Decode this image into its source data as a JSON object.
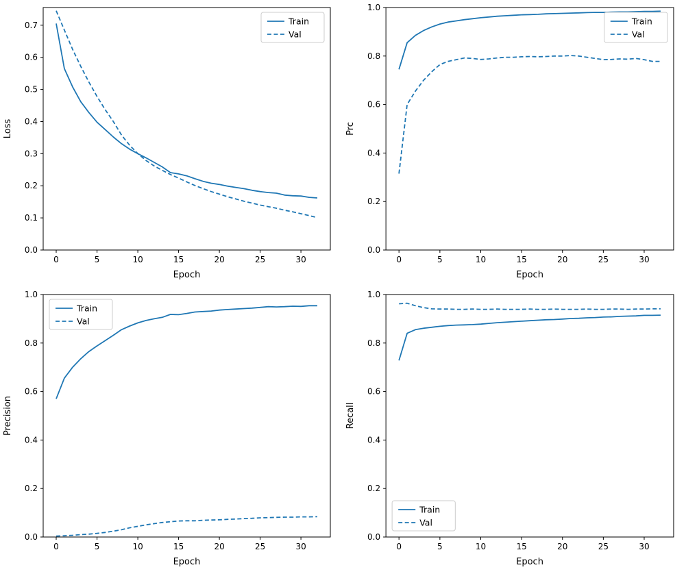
{
  "figure": {
    "background": "#ffffff",
    "line_color": "#1f77b4",
    "spine_color": "#000000",
    "legend_border_color": "#cccccc"
  },
  "chart_data": [
    {
      "type": "line",
      "title": "",
      "xlabel": "Epoch",
      "ylabel": "Loss",
      "xlim": [
        -1.6,
        33.6
      ],
      "ylim": [
        0.0,
        0.755
      ],
      "xticks": [
        0,
        5,
        10,
        15,
        20,
        25,
        30
      ],
      "yticks": [
        0.0,
        0.1,
        0.2,
        0.3,
        0.4,
        0.5,
        0.6,
        0.7
      ],
      "grid": false,
      "legend_position": "upper-right",
      "x": [
        0,
        1,
        2,
        3,
        4,
        5,
        6,
        7,
        8,
        9,
        10,
        11,
        12,
        13,
        14,
        15,
        16,
        17,
        18,
        19,
        20,
        21,
        22,
        23,
        24,
        25,
        26,
        27,
        28,
        29,
        30,
        31,
        32
      ],
      "series": [
        {
          "name": "Train",
          "style": "solid",
          "values": [
            0.705,
            0.565,
            0.508,
            0.462,
            0.428,
            0.398,
            0.375,
            0.352,
            0.331,
            0.314,
            0.3,
            0.287,
            0.273,
            0.259,
            0.241,
            0.237,
            0.231,
            0.222,
            0.214,
            0.208,
            0.204,
            0.199,
            0.195,
            0.191,
            0.186,
            0.182,
            0.179,
            0.177,
            0.171,
            0.169,
            0.168,
            0.164,
            0.162
          ]
        },
        {
          "name": "Val",
          "style": "dashed",
          "values": [
            0.745,
            0.685,
            0.625,
            0.572,
            0.523,
            0.478,
            0.437,
            0.4,
            0.358,
            0.326,
            0.3,
            0.279,
            0.262,
            0.248,
            0.235,
            0.224,
            0.212,
            0.201,
            0.191,
            0.182,
            0.174,
            0.166,
            0.159,
            0.152,
            0.146,
            0.14,
            0.135,
            0.13,
            0.124,
            0.119,
            0.113,
            0.107,
            0.101
          ]
        }
      ]
    },
    {
      "type": "line",
      "title": "",
      "xlabel": "Epoch",
      "ylabel": "Prc",
      "xlim": [
        -1.6,
        33.6
      ],
      "ylim": [
        0.0,
        1.0
      ],
      "xticks": [
        0,
        5,
        10,
        15,
        20,
        25,
        30
      ],
      "yticks": [
        0.0,
        0.2,
        0.4,
        0.6,
        0.8,
        1.0
      ],
      "grid": false,
      "legend_position": "upper-right",
      "x": [
        0,
        1,
        2,
        3,
        4,
        5,
        6,
        7,
        8,
        9,
        10,
        11,
        12,
        13,
        14,
        15,
        16,
        17,
        18,
        19,
        20,
        21,
        22,
        23,
        24,
        25,
        26,
        27,
        28,
        29,
        30,
        31,
        32
      ],
      "series": [
        {
          "name": "Train",
          "style": "solid",
          "values": [
            0.745,
            0.855,
            0.885,
            0.905,
            0.92,
            0.932,
            0.94,
            0.945,
            0.95,
            0.954,
            0.958,
            0.961,
            0.964,
            0.966,
            0.968,
            0.97,
            0.971,
            0.972,
            0.974,
            0.975,
            0.976,
            0.977,
            0.978,
            0.979,
            0.98,
            0.98,
            0.981,
            0.982,
            0.982,
            0.983,
            0.984,
            0.984,
            0.985
          ]
        },
        {
          "name": "Val",
          "style": "dashed",
          "values": [
            0.315,
            0.6,
            0.655,
            0.7,
            0.735,
            0.765,
            0.778,
            0.785,
            0.792,
            0.79,
            0.786,
            0.788,
            0.792,
            0.795,
            0.795,
            0.797,
            0.798,
            0.797,
            0.798,
            0.8,
            0.8,
            0.802,
            0.8,
            0.795,
            0.79,
            0.785,
            0.786,
            0.788,
            0.787,
            0.79,
            0.785,
            0.778,
            0.778
          ]
        }
      ]
    },
    {
      "type": "line",
      "title": "",
      "xlabel": "Epoch",
      "ylabel": "Precision",
      "xlim": [
        -1.6,
        33.6
      ],
      "ylim": [
        0.0,
        1.0
      ],
      "xticks": [
        0,
        5,
        10,
        15,
        20,
        25,
        30
      ],
      "yticks": [
        0.0,
        0.2,
        0.4,
        0.6,
        0.8,
        1.0
      ],
      "grid": false,
      "legend_position": "upper-left",
      "x": [
        0,
        1,
        2,
        3,
        4,
        5,
        6,
        7,
        8,
        9,
        10,
        11,
        12,
        13,
        14,
        15,
        16,
        17,
        18,
        19,
        20,
        21,
        22,
        23,
        24,
        25,
        26,
        27,
        28,
        29,
        30,
        31,
        32
      ],
      "series": [
        {
          "name": "Train",
          "style": "solid",
          "values": [
            0.57,
            0.655,
            0.7,
            0.735,
            0.765,
            0.788,
            0.81,
            0.832,
            0.855,
            0.87,
            0.883,
            0.893,
            0.9,
            0.906,
            0.918,
            0.917,
            0.922,
            0.928,
            0.93,
            0.932,
            0.936,
            0.938,
            0.94,
            0.942,
            0.944,
            0.947,
            0.95,
            0.949,
            0.95,
            0.952,
            0.951,
            0.954,
            0.954
          ]
        },
        {
          "name": "Val",
          "style": "dashed",
          "values": [
            0.004,
            0.005,
            0.007,
            0.01,
            0.012,
            0.015,
            0.019,
            0.024,
            0.03,
            0.038,
            0.044,
            0.05,
            0.055,
            0.06,
            0.063,
            0.066,
            0.067,
            0.067,
            0.069,
            0.07,
            0.071,
            0.073,
            0.074,
            0.076,
            0.077,
            0.079,
            0.08,
            0.081,
            0.082,
            0.082,
            0.083,
            0.083,
            0.084
          ]
        }
      ]
    },
    {
      "type": "line",
      "title": "",
      "xlabel": "Epoch",
      "ylabel": "Recall",
      "xlim": [
        -1.6,
        33.6
      ],
      "ylim": [
        0.0,
        1.0
      ],
      "xticks": [
        0,
        5,
        10,
        15,
        20,
        25,
        30
      ],
      "yticks": [
        0.0,
        0.2,
        0.4,
        0.6,
        0.8,
        1.0
      ],
      "grid": false,
      "legend_position": "lower-left",
      "x": [
        0,
        1,
        2,
        3,
        4,
        5,
        6,
        7,
        8,
        9,
        10,
        11,
        12,
        13,
        14,
        15,
        16,
        17,
        18,
        19,
        20,
        21,
        22,
        23,
        24,
        25,
        26,
        27,
        28,
        29,
        30,
        31,
        32
      ],
      "series": [
        {
          "name": "Train",
          "style": "solid",
          "values": [
            0.728,
            0.84,
            0.855,
            0.861,
            0.865,
            0.869,
            0.872,
            0.874,
            0.875,
            0.876,
            0.878,
            0.881,
            0.884,
            0.886,
            0.888,
            0.89,
            0.892,
            0.894,
            0.896,
            0.897,
            0.899,
            0.901,
            0.902,
            0.904,
            0.905,
            0.907,
            0.908,
            0.91,
            0.911,
            0.912,
            0.914,
            0.914,
            0.915
          ]
        },
        {
          "name": "Val",
          "style": "dashed",
          "values": [
            0.962,
            0.964,
            0.954,
            0.946,
            0.941,
            0.94,
            0.94,
            0.939,
            0.939,
            0.94,
            0.939,
            0.939,
            0.94,
            0.939,
            0.939,
            0.939,
            0.94,
            0.939,
            0.939,
            0.94,
            0.939,
            0.939,
            0.939,
            0.94,
            0.939,
            0.939,
            0.94,
            0.94,
            0.939,
            0.94,
            0.94,
            0.941,
            0.941
          ]
        }
      ]
    }
  ]
}
